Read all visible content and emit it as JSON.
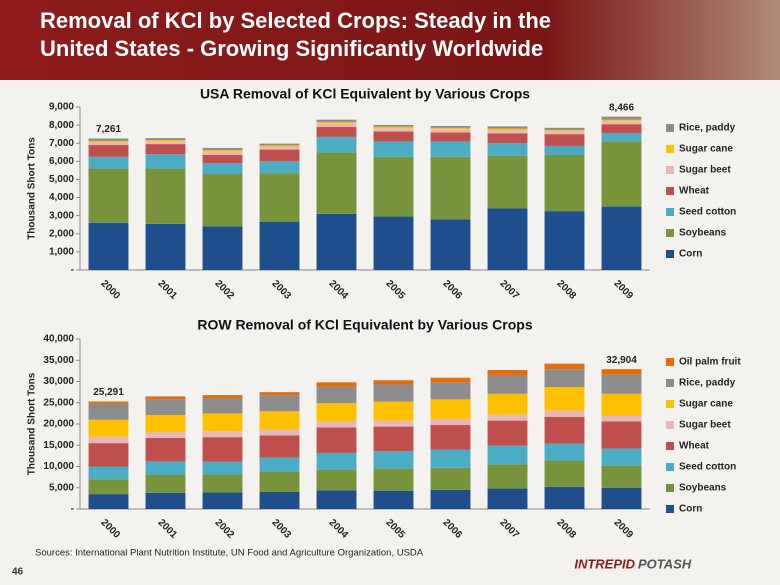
{
  "slide_title": [
    "Removal of KCl by Selected Crops: Steady in the",
    "United States - Growing Significantly Worldwide"
  ],
  "source": "Sources: International Plant Nutrition Institute, UN Food and Agriculture Organization, USDA",
  "page_number": "46",
  "logo": [
    "INTREPID",
    "POTASH"
  ],
  "chart_data": [
    {
      "type": "stacked_bar",
      "title": "USA Removal of KCl Equivalent by Various Crops",
      "y_label": "Thousand Short Tons",
      "categories": [
        "2000",
        "2001",
        "2002",
        "2003",
        "2004",
        "2005",
        "2006",
        "2007",
        "2008",
        "2009"
      ],
      "ylim": [
        0,
        9000
      ],
      "yticks": [
        {
          "value": 0,
          "label": "-"
        },
        {
          "value": 1000,
          "label": "1,000"
        },
        {
          "value": 2000,
          "label": "2,000"
        },
        {
          "value": 3000,
          "label": "3,000"
        },
        {
          "value": 4000,
          "label": "4,000"
        },
        {
          "value": 5000,
          "label": "5,000"
        },
        {
          "value": 6000,
          "label": "6,000"
        },
        {
          "value": 7000,
          "label": "7,000"
        },
        {
          "value": 8000,
          "label": "8,000"
        },
        {
          "value": 9000,
          "label": "9,000"
        }
      ],
      "grid": false,
      "series": [
        {
          "name": "Corn",
          "color": "#1f4e8c",
          "values": [
            2600,
            2550,
            2400,
            2650,
            3100,
            2950,
            2800,
            3400,
            3250,
            3500
          ]
        },
        {
          "name": "Soybeans",
          "color": "#77933c",
          "values": [
            3000,
            3050,
            2900,
            2700,
            3400,
            3300,
            3450,
            2900,
            3100,
            3600
          ]
        },
        {
          "name": "Seed cotton",
          "color": "#4bacc6",
          "values": [
            650,
            800,
            600,
            650,
            850,
            850,
            850,
            700,
            500,
            450
          ]
        },
        {
          "name": "Wheat",
          "color": "#c0504d",
          "values": [
            650,
            550,
            450,
            650,
            550,
            550,
            500,
            550,
            650,
            500
          ]
        },
        {
          "name": "Sugar beet",
          "color": "#e6b9b8",
          "values": [
            150,
            150,
            180,
            150,
            200,
            180,
            180,
            180,
            170,
            170
          ]
        },
        {
          "name": "Sugar cane",
          "color": "#ffc000",
          "values": [
            80,
            80,
            90,
            80,
            80,
            80,
            70,
            80,
            70,
            80
          ]
        },
        {
          "name": "Rice, paddy",
          "color": "#8c8c8c",
          "values": [
            131,
            100,
            120,
            100,
            120,
            100,
            100,
            120,
            110,
            166
          ]
        }
      ],
      "total_labels": [
        {
          "value": 7261,
          "label": "7,261"
        },
        null,
        null,
        null,
        null,
        null,
        null,
        null,
        null,
        {
          "value": 8466,
          "label": "8,466"
        }
      ]
    },
    {
      "type": "stacked_bar",
      "title": "ROW Removal of KCl Equivalent by Various Crops",
      "y_label": "Thousand Short Tons",
      "categories": [
        "2000",
        "2001",
        "2002",
        "2003",
        "2004",
        "2005",
        "2006",
        "2007",
        "2008",
        "2009"
      ],
      "ylim": [
        0,
        40000
      ],
      "yticks": [
        {
          "value": 0,
          "label": "-"
        },
        {
          "value": 5000,
          "label": "5,000"
        },
        {
          "value": 10000,
          "label": "10,000"
        },
        {
          "value": 15000,
          "label": "15,000"
        },
        {
          "value": 20000,
          "label": "20,000"
        },
        {
          "value": 25000,
          "label": "25,000"
        },
        {
          "value": 30000,
          "label": "30,000"
        },
        {
          "value": 35000,
          "label": "35,000"
        },
        {
          "value": 40000,
          "label": "40,000"
        }
      ],
      "grid": false,
      "series": [
        {
          "name": "Corn",
          "color": "#1f4e8c",
          "values": [
            3500,
            3800,
            3900,
            4000,
            4400,
            4300,
            4500,
            4800,
            5200,
            5000
          ]
        },
        {
          "name": "Soybeans",
          "color": "#77933c",
          "values": [
            3500,
            4200,
            4200,
            4800,
            4800,
            5300,
            5200,
            5700,
            6200,
            5200
          ]
        },
        {
          "name": "Seed cotton",
          "color": "#4bacc6",
          "values": [
            3000,
            3200,
            3000,
            3300,
            4000,
            4000,
            4300,
            4400,
            4000,
            4000
          ]
        },
        {
          "name": "Wheat",
          "color": "#c0504d",
          "values": [
            5500,
            5500,
            5800,
            5200,
            6000,
            5800,
            5800,
            5900,
            6300,
            6400
          ]
        },
        {
          "name": "Sugar beet",
          "color": "#e6b9b8",
          "values": [
            1500,
            1400,
            1400,
            1400,
            1400,
            1400,
            1400,
            1400,
            1500,
            1400
          ]
        },
        {
          "name": "Sugar cane",
          "color": "#ffc000",
          "values": [
            4000,
            4000,
            4200,
            4300,
            4300,
            4500,
            4600,
            4900,
            5500,
            5100
          ]
        },
        {
          "name": "Rice, paddy",
          "color": "#8c8c8c",
          "values": [
            3800,
            3700,
            3600,
            3800,
            3900,
            4000,
            4000,
            4300,
            4200,
            4500
          ]
        },
        {
          "name": "Oil palm fruit",
          "color": "#e46c0a",
          "values": [
            491,
            700,
            700,
            700,
            1000,
            1000,
            1100,
            1300,
            1300,
            1304
          ]
        }
      ],
      "total_labels": [
        {
          "value": 25291,
          "label": "25,291"
        },
        null,
        null,
        null,
        null,
        null,
        null,
        null,
        null,
        {
          "value": 32904,
          "label": "32,904"
        }
      ]
    }
  ]
}
